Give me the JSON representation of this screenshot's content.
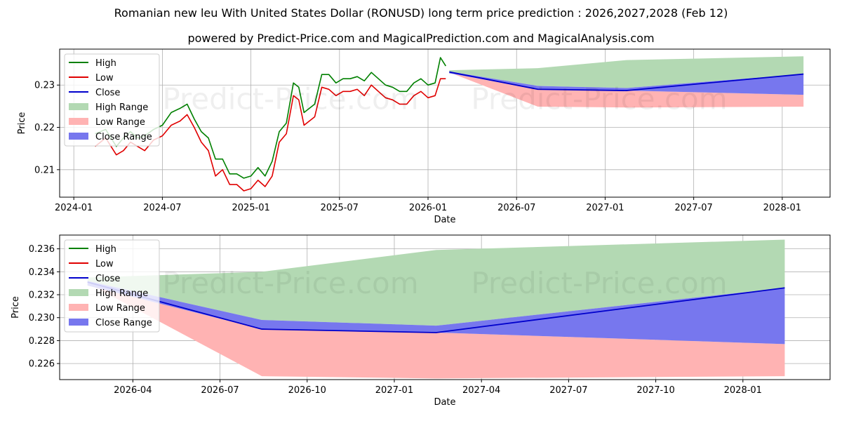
{
  "title": "Romanian new leu With United States Dollar (RONUSD) long term price prediction : 2026,2027,2028 (Feb 12)",
  "subtitle": "powered by Predict-Price.com and MagicalPrediction.com and MagicalAnalysis.com",
  "watermark": "Predict-Price.com",
  "colors": {
    "high": "#008000",
    "low": "#e00000",
    "close": "#0000cc",
    "high_range": "#b3d9b3",
    "low_range": "#ffb3b3",
    "close_range": "#7777ee",
    "grid": "#b0b0b0"
  },
  "chart_data": [
    {
      "type": "line",
      "name": "top",
      "xlabel": "Date",
      "ylabel": "Price",
      "xlim": [
        2023.92,
        2028.27
      ],
      "ylim": [
        0.2035,
        0.2385
      ],
      "yticks": [
        0.21,
        0.22,
        0.23
      ],
      "ytick_labels": [
        "0.21",
        "0.22",
        "0.23"
      ],
      "xticks": [
        2024.0,
        2024.5,
        2025.0,
        2025.5,
        2026.0,
        2026.5,
        2027.0,
        2027.5,
        2028.0
      ],
      "xtick_labels": [
        "2024-01",
        "2024-07",
        "2025-01",
        "2025-07",
        "2026-01",
        "2026-07",
        "2027-01",
        "2027-07",
        "2028-01"
      ],
      "legend": {
        "location": "upper-left",
        "entries": [
          {
            "label": "High",
            "kind": "line",
            "color_key": "high"
          },
          {
            "label": "Low",
            "kind": "line",
            "color_key": "low"
          },
          {
            "label": "Close",
            "kind": "line",
            "color_key": "close"
          },
          {
            "label": "High Range",
            "kind": "patch",
            "color_key": "high_range"
          },
          {
            "label": "Low Range",
            "kind": "patch",
            "color_key": "low_range"
          },
          {
            "label": "Close Range",
            "kind": "patch",
            "color_key": "close_range"
          }
        ]
      },
      "history": {
        "dates": [
          2024.12,
          2024.18,
          2024.24,
          2024.28,
          2024.32,
          2024.36,
          2024.4,
          2024.45,
          2024.5,
          2024.55,
          2024.6,
          2024.64,
          2024.68,
          2024.72,
          2024.76,
          2024.8,
          2024.84,
          2024.88,
          2024.92,
          2024.96,
          2025.0,
          2025.04,
          2025.08,
          2025.12,
          2025.16,
          2025.2,
          2025.24,
          2025.27,
          2025.3,
          2025.33,
          2025.36,
          2025.4,
          2025.44,
          2025.48,
          2025.52,
          2025.56,
          2025.6,
          2025.64,
          2025.68,
          2025.72,
          2025.76,
          2025.8,
          2025.84,
          2025.88,
          2025.92,
          2025.96,
          2026.0,
          2026.04,
          2026.07,
          2026.1
        ],
        "high": [
          0.2185,
          0.2195,
          0.2155,
          0.2175,
          0.219,
          0.2175,
          0.218,
          0.2195,
          0.2205,
          0.2235,
          0.2245,
          0.2255,
          0.222,
          0.219,
          0.2175,
          0.2125,
          0.2125,
          0.209,
          0.209,
          0.208,
          0.2085,
          0.2105,
          0.2085,
          0.212,
          0.219,
          0.221,
          0.2305,
          0.2295,
          0.2235,
          0.2245,
          0.2255,
          0.2325,
          0.2325,
          0.2305,
          0.2315,
          0.2315,
          0.232,
          0.231,
          0.233,
          0.2315,
          0.23,
          0.2295,
          0.2285,
          0.2285,
          0.2305,
          0.2315,
          0.23,
          0.2305,
          0.2365,
          0.2345
        ],
        "low": [
          0.2155,
          0.2175,
          0.2135,
          0.2145,
          0.2165,
          0.2155,
          0.2145,
          0.217,
          0.218,
          0.2205,
          0.2215,
          0.223,
          0.22,
          0.2165,
          0.2145,
          0.2085,
          0.21,
          0.2065,
          0.2065,
          0.205,
          0.2055,
          0.2075,
          0.206,
          0.2085,
          0.2165,
          0.2185,
          0.2275,
          0.2265,
          0.2205,
          0.2215,
          0.2225,
          0.2295,
          0.229,
          0.2275,
          0.2285,
          0.2285,
          0.229,
          0.2275,
          0.23,
          0.2285,
          0.227,
          0.2265,
          0.2255,
          0.2255,
          0.2275,
          0.2285,
          0.227,
          0.2275,
          0.2315,
          0.2315
        ]
      },
      "forecast": {
        "dates": [
          2026.12,
          2026.62,
          2027.12,
          2028.12
        ],
        "close": [
          0.2331,
          0.229,
          0.2287,
          0.2326
        ],
        "high_range_upper": [
          0.2335,
          0.234,
          0.2359,
          0.2368
        ],
        "close_range_upper": [
          0.2332,
          0.2298,
          0.2293,
          0.2326
        ],
        "close_range_lower": [
          0.2328,
          0.229,
          0.2287,
          0.2277
        ],
        "low_range_lower": [
          0.233,
          0.2249,
          0.2247,
          0.2249
        ]
      }
    },
    {
      "type": "line",
      "name": "bottom",
      "xlabel": "Date",
      "ylabel": "Price",
      "xlim": [
        2026.04,
        2028.25
      ],
      "ylim": [
        0.2246,
        0.2372
      ],
      "yticks": [
        0.226,
        0.228,
        0.23,
        0.232,
        0.234,
        0.236
      ],
      "ytick_labels": [
        "0.226",
        "0.228",
        "0.230",
        "0.232",
        "0.234",
        "0.236"
      ],
      "xticks": [
        2026.25,
        2026.5,
        2026.75,
        2027.0,
        2027.25,
        2027.5,
        2027.75,
        2028.0
      ],
      "xtick_labels": [
        "2026-04",
        "2026-07",
        "2026-10",
        "2027-01",
        "2027-04",
        "2027-07",
        "2027-10",
        "2028-01"
      ],
      "legend": {
        "location": "upper-left",
        "entries": [
          {
            "label": "High",
            "kind": "line",
            "color_key": "high"
          },
          {
            "label": "Low",
            "kind": "line",
            "color_key": "low"
          },
          {
            "label": "Close",
            "kind": "line",
            "color_key": "close"
          },
          {
            "label": "High Range",
            "kind": "patch",
            "color_key": "high_range"
          },
          {
            "label": "Low Range",
            "kind": "patch",
            "color_key": "low_range"
          },
          {
            "label": "Close Range",
            "kind": "patch",
            "color_key": "close_range"
          }
        ]
      },
      "forecast": {
        "dates": [
          2026.12,
          2026.62,
          2027.12,
          2028.12
        ],
        "close": [
          0.2331,
          0.229,
          0.2287,
          0.2326
        ],
        "high_range_upper": [
          0.2335,
          0.234,
          0.2359,
          0.2368
        ],
        "close_range_upper": [
          0.2332,
          0.2298,
          0.2293,
          0.2326
        ],
        "close_range_lower": [
          0.2328,
          0.229,
          0.2287,
          0.2277
        ],
        "low_range_lower": [
          0.233,
          0.2249,
          0.2247,
          0.2249
        ]
      }
    }
  ]
}
